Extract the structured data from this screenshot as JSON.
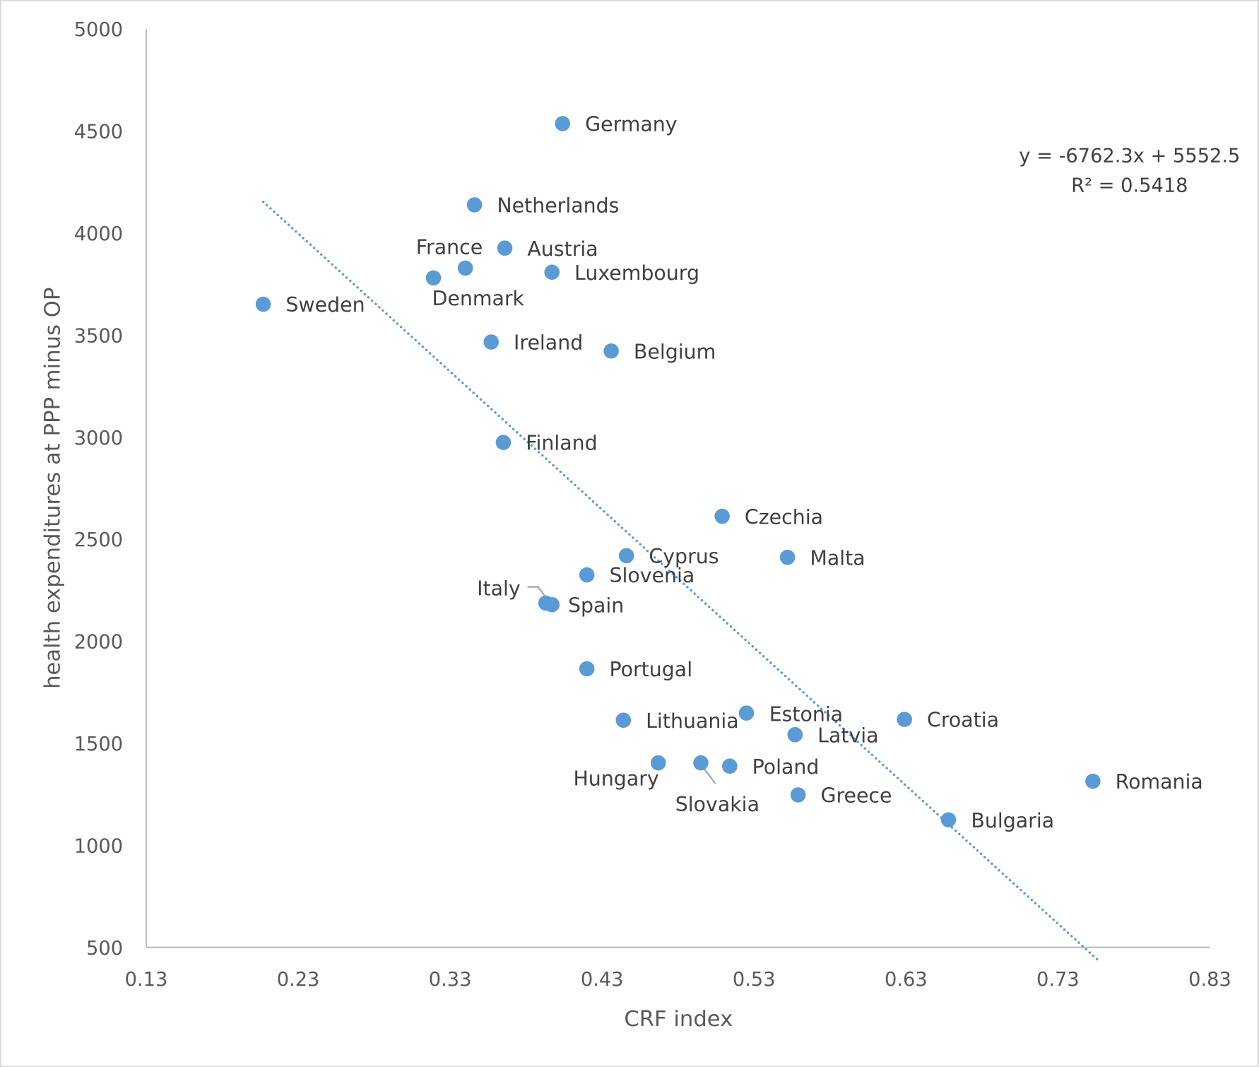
{
  "chart_data": {
    "type": "scatter",
    "title": "",
    "xlabel": "CRF index",
    "ylabel": "health expenditures at PPP minus OP",
    "xlim": [
      0.13,
      0.83
    ],
    "ylim": [
      500,
      5000
    ],
    "x_ticks": [
      "0.13",
      "0.23",
      "0.33",
      "0.43",
      "0.53",
      "0.63",
      "0.73",
      "0.83"
    ],
    "y_ticks": [
      "500",
      "1000",
      "1500",
      "2000",
      "2500",
      "3000",
      "3500",
      "4000",
      "4500",
      "5000"
    ],
    "grid": false,
    "marker_color": "#5B9BD5",
    "points": [
      {
        "label": "Germany",
        "x": 0.404,
        "y": 4536
      },
      {
        "label": "Netherlands",
        "x": 0.346,
        "y": 4138
      },
      {
        "label": "Austria",
        "x": 0.366,
        "y": 3926
      },
      {
        "label": "France",
        "x": 0.34,
        "y": 3828
      },
      {
        "label": "Denmark",
        "x": 0.319,
        "y": 3780
      },
      {
        "label": "Luxembourg",
        "x": 0.397,
        "y": 3808
      },
      {
        "label": "Sweden",
        "x": 0.207,
        "y": 3651
      },
      {
        "label": "Ireland",
        "x": 0.357,
        "y": 3466
      },
      {
        "label": "Belgium",
        "x": 0.436,
        "y": 3422
      },
      {
        "label": "Finland",
        "x": 0.365,
        "y": 2974
      },
      {
        "label": "Czechia",
        "x": 0.509,
        "y": 2612
      },
      {
        "label": "Cyprus",
        "x": 0.446,
        "y": 2419
      },
      {
        "label": "Malta",
        "x": 0.552,
        "y": 2411
      },
      {
        "label": "Slovenia",
        "x": 0.42,
        "y": 2325
      },
      {
        "label": "Italy",
        "x": 0.393,
        "y": 2187
      },
      {
        "label": "Spain",
        "x": 0.397,
        "y": 2179
      },
      {
        "label": "Portugal",
        "x": 0.42,
        "y": 1865
      },
      {
        "label": "Estonia",
        "x": 0.525,
        "y": 1648
      },
      {
        "label": "Lithuania",
        "x": 0.444,
        "y": 1613
      },
      {
        "label": "Croatia",
        "x": 0.629,
        "y": 1617
      },
      {
        "label": "Latvia",
        "x": 0.557,
        "y": 1542
      },
      {
        "label": "Hungary",
        "x": 0.467,
        "y": 1404
      },
      {
        "label": "Slovakia",
        "x": 0.495,
        "y": 1404
      },
      {
        "label": "Poland",
        "x": 0.514,
        "y": 1388
      },
      {
        "label": "Greece",
        "x": 0.559,
        "y": 1247
      },
      {
        "label": "Romania",
        "x": 0.753,
        "y": 1314
      },
      {
        "label": "Bulgaria",
        "x": 0.658,
        "y": 1125
      }
    ],
    "trendline": {
      "type": "linear",
      "slope": -6762.3,
      "intercept": 5552.5,
      "x_range": [
        0.207,
        0.7567
      ],
      "equation_label": "y = -6762.3x + 5552.5",
      "r2_label": "R² = 0.5418"
    }
  }
}
